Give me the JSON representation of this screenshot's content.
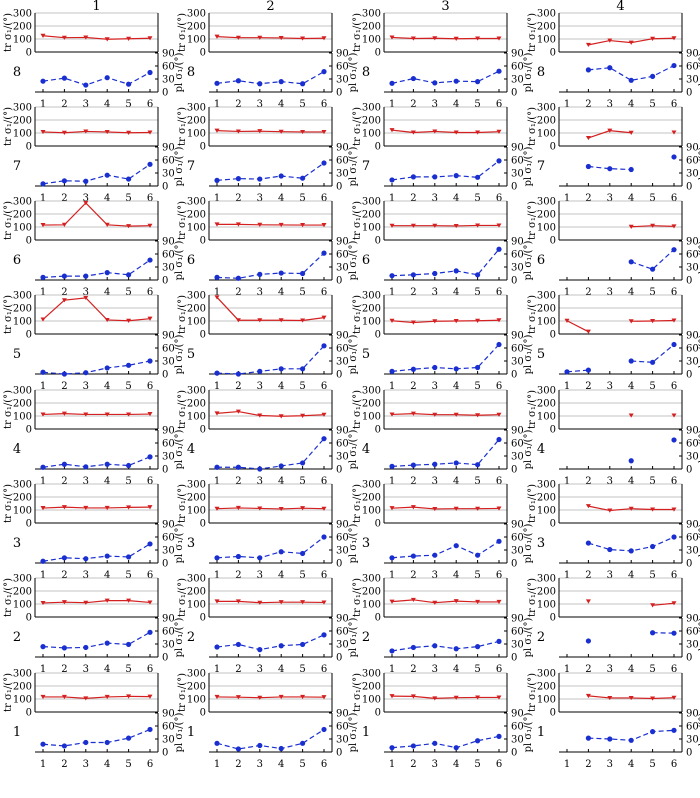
{
  "chart_data": {
    "type": "line",
    "column_labels": [
      "1",
      "2",
      "3",
      "4"
    ],
    "row_labels": [
      "8",
      "7",
      "6",
      "5",
      "4",
      "3",
      "2",
      "1"
    ],
    "x": [
      1,
      2,
      3,
      4,
      5,
      6
    ],
    "x_ticks": [
      "1",
      "2",
      "3",
      "4",
      "5",
      "6"
    ],
    "tr_axis": {
      "label": "tr σ₁/(°)",
      "ticks": [
        "0",
        "100",
        "200",
        "300"
      ],
      "ylim": [
        0,
        300
      ]
    },
    "pl_axis": {
      "label": "pl σ₁/(°)",
      "ticks": [
        "0",
        "30",
        "60",
        "90"
      ],
      "ylim": [
        0,
        90
      ]
    },
    "colors": {
      "tr": "#d42020",
      "pl": "#1a2fd0",
      "grid": "#888888",
      "frame": "#000000"
    },
    "panels": [
      {
        "row": "8",
        "col": "1",
        "tr": [
          125,
          110,
          112,
          98,
          102,
          106
        ],
        "pl": [
          25,
          32,
          16,
          33,
          18,
          45
        ]
      },
      {
        "row": "8",
        "col": "2",
        "tr": [
          118,
          110,
          110,
          108,
          104,
          106
        ],
        "pl": [
          20,
          26,
          19,
          24,
          19,
          47
        ]
      },
      {
        "row": "8",
        "col": "3",
        "tr": [
          112,
          104,
          106,
          102,
          104,
          104
        ],
        "pl": [
          20,
          31,
          21,
          25,
          24,
          48
        ]
      },
      {
        "row": "8",
        "col": "4",
        "tr": [
          null,
          55,
          88,
          72,
          102,
          106
        ],
        "pl": [
          null,
          51,
          56,
          27,
          36,
          61
        ]
      },
      {
        "row": "7",
        "col": "1",
        "tr": [
          108,
          102,
          112,
          108,
          102,
          104
        ],
        "pl": [
          5,
          12,
          11,
          25,
          16,
          50
        ]
      },
      {
        "row": "7",
        "col": "2",
        "tr": [
          118,
          112,
          114,
          110,
          108,
          108
        ],
        "pl": [
          13,
          17,
          16,
          23,
          18,
          53
        ]
      },
      {
        "row": "7",
        "col": "3",
        "tr": [
          122,
          104,
          112,
          104,
          104,
          110
        ],
        "pl": [
          14,
          21,
          21,
          24,
          20,
          58
        ]
      },
      {
        "row": "7",
        "col": "4",
        "tr": [
          null,
          62,
          118,
          102,
          null,
          104
        ],
        "pl": [
          null,
          45,
          40,
          38,
          null,
          67
        ]
      },
      {
        "row": "6",
        "col": "1",
        "tr": [
          115,
          117,
          285,
          117,
          107,
          110
        ],
        "pl": [
          6,
          9,
          9,
          17,
          12,
          46
        ]
      },
      {
        "row": "6",
        "col": "2",
        "tr": [
          120,
          120,
          117,
          116,
          115,
          115
        ],
        "pl": [
          6,
          4,
          13,
          16,
          15,
          62
        ]
      },
      {
        "row": "6",
        "col": "3",
        "tr": [
          110,
          110,
          110,
          108,
          112,
          112
        ],
        "pl": [
          10,
          12,
          15,
          21,
          12,
          71
        ]
      },
      {
        "row": "6",
        "col": "4",
        "tr": [
          null,
          null,
          null,
          102,
          110,
          105
        ],
        "pl": [
          null,
          null,
          null,
          42,
          25,
          70
        ]
      },
      {
        "row": "5",
        "col": "1",
        "tr": [
          112,
          260,
          278,
          108,
          102,
          118
        ],
        "pl": [
          4,
          0,
          3,
          14,
          20,
          30
        ]
      },
      {
        "row": "5",
        "col": "2",
        "tr": [
          282,
          106,
          106,
          106,
          104,
          126
        ],
        "pl": [
          2,
          0,
          6,
          12,
          12,
          65
        ]
      },
      {
        "row": "5",
        "col": "3",
        "tr": [
          102,
          88,
          98,
          100,
          102,
          106
        ],
        "pl": [
          6,
          11,
          15,
          12,
          15,
          68
        ]
      },
      {
        "row": "5",
        "col": "4",
        "tr": [
          102,
          18,
          null,
          98,
          100,
          104
        ],
        "pl": [
          5,
          9,
          null,
          30,
          27,
          68
        ]
      },
      {
        "row": "4",
        "col": "1",
        "tr": [
          112,
          118,
          112,
          112,
          112,
          115
        ],
        "pl": [
          4,
          11,
          5,
          11,
          8,
          28
        ]
      },
      {
        "row": "4",
        "col": "2",
        "tr": [
          120,
          134,
          104,
          98,
          102,
          110
        ],
        "pl": [
          4,
          4,
          0,
          7,
          14,
          70
        ]
      },
      {
        "row": "4",
        "col": "3",
        "tr": [
          112,
          118,
          110,
          110,
          106,
          110
        ],
        "pl": [
          6,
          9,
          11,
          14,
          10,
          68
        ]
      },
      {
        "row": "4",
        "col": "4",
        "tr": [
          null,
          null,
          null,
          104,
          null,
          104
        ],
        "pl": [
          null,
          null,
          null,
          19,
          null,
          67
        ]
      },
      {
        "row": "3",
        "col": "1",
        "tr": [
          115,
          122,
          116,
          116,
          120,
          122
        ],
        "pl": [
          4,
          12,
          10,
          16,
          14,
          44
        ]
      },
      {
        "row": "3",
        "col": "2",
        "tr": [
          110,
          116,
          112,
          108,
          114,
          110
        ],
        "pl": [
          12,
          15,
          12,
          26,
          22,
          60
        ]
      },
      {
        "row": "3",
        "col": "3",
        "tr": [
          114,
          122,
          108,
          110,
          110,
          112
        ],
        "pl": [
          12,
          16,
          18,
          40,
          18,
          50
        ]
      },
      {
        "row": "3",
        "col": "4",
        "tr": [
          null,
          130,
          96,
          110,
          104,
          104
        ],
        "pl": [
          null,
          46,
          31,
          28,
          38,
          60
        ]
      },
      {
        "row": "2",
        "col": "1",
        "tr": [
          108,
          114,
          110,
          126,
          126,
          112
        ],
        "pl": [
          24,
          21,
          22,
          32,
          29,
          57
        ]
      },
      {
        "row": "2",
        "col": "2",
        "tr": [
          120,
          120,
          110,
          114,
          114,
          112
        ],
        "pl": [
          23,
          29,
          17,
          26,
          29,
          51
        ]
      },
      {
        "row": "2",
        "col": "3",
        "tr": [
          118,
          132,
          110,
          122,
          116,
          116
        ],
        "pl": [
          14,
          22,
          26,
          19,
          24,
          36
        ]
      },
      {
        "row": "2",
        "col": "4",
        "tr": [
          null,
          120,
          null,
          null,
          90,
          106
        ],
        "pl": [
          null,
          37,
          null,
          null,
          56,
          55
        ]
      },
      {
        "row": "1",
        "col": "1",
        "tr": [
          116,
          116,
          105,
          116,
          120,
          118
        ],
        "pl": [
          18,
          14,
          22,
          22,
          32,
          52
        ]
      },
      {
        "row": "1",
        "col": "2",
        "tr": [
          116,
          114,
          110,
          116,
          116,
          114
        ],
        "pl": [
          20,
          7,
          15,
          8,
          20,
          52
        ]
      },
      {
        "row": "1",
        "col": "3",
        "tr": [
          122,
          120,
          105,
          110,
          112,
          112
        ],
        "pl": [
          10,
          14,
          20,
          10,
          26,
          36
        ]
      },
      {
        "row": "1",
        "col": "4",
        "tr": [
          null,
          124,
          108,
          108,
          104,
          110
        ],
        "pl": [
          null,
          32,
          30,
          27,
          47,
          50
        ]
      }
    ]
  }
}
